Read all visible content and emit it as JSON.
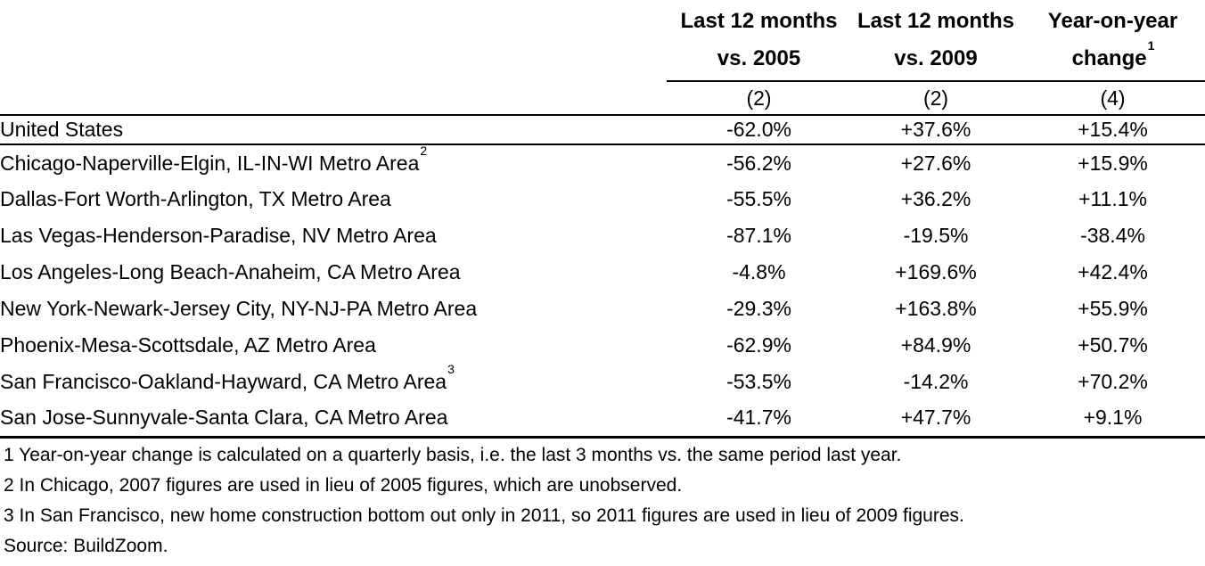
{
  "table": {
    "columns": [
      {
        "line1": "Last 12 months",
        "line2": "vs. 2005",
        "sup": "",
        "sub": "(2)"
      },
      {
        "line1": "Last 12 months",
        "line2": "vs. 2009",
        "sup": "",
        "sub": "(2)"
      },
      {
        "line1": "Year-on-year",
        "line2": "change",
        "sup": "1",
        "sub": "(4)"
      }
    ],
    "rows": [
      {
        "label": "United States",
        "sup": "",
        "vs2005": "-62.0%",
        "vs2009": "+37.6%",
        "yoy": "+15.4%"
      },
      {
        "label": "Chicago-Naperville-Elgin, IL-IN-WI Metro Area",
        "sup": "2",
        "vs2005": "-56.2%",
        "vs2009": "+27.6%",
        "yoy": "+15.9%"
      },
      {
        "label": "Dallas-Fort Worth-Arlington, TX Metro Area",
        "sup": "",
        "vs2005": "-55.5%",
        "vs2009": "+36.2%",
        "yoy": "+11.1%"
      },
      {
        "label": "Las Vegas-Henderson-Paradise, NV Metro Area",
        "sup": "",
        "vs2005": "-87.1%",
        "vs2009": "-19.5%",
        "yoy": "-38.4%"
      },
      {
        "label": "Los Angeles-Long Beach-Anaheim, CA Metro Area",
        "sup": "",
        "vs2005": "-4.8%",
        "vs2009": "+169.6%",
        "yoy": "+42.4%"
      },
      {
        "label": "New York-Newark-Jersey City, NY-NJ-PA Metro Area",
        "sup": "",
        "vs2005": "-29.3%",
        "vs2009": "+163.8%",
        "yoy": "+55.9%"
      },
      {
        "label": "Phoenix-Mesa-Scottsdale, AZ Metro Area",
        "sup": "",
        "vs2005": "-62.9%",
        "vs2009": "+84.9%",
        "yoy": "+50.7%"
      },
      {
        "label": "San Francisco-Oakland-Hayward, CA Metro Area",
        "sup": "3",
        "vs2005": "-53.5%",
        "vs2009": "-14.2%",
        "yoy": "+70.2%"
      },
      {
        "label": "San Jose-Sunnyvale-Santa Clara, CA Metro Area",
        "sup": "",
        "vs2005": "-41.7%",
        "vs2009": "+47.7%",
        "yoy": "+9.1%"
      }
    ]
  },
  "footnotes": [
    "1 Year-on-year change is calculated on a quarterly basis, i.e. the last 3 months vs. the same period last year.",
    "2 In Chicago, 2007 figures are used in lieu of 2005 figures, which are unobserved.",
    "3 In San Francisco, new home construction bottom out only in 2011, so 2011 figures are used in lieu of 2009 figures."
  ],
  "source": "Source: BuildZoom.",
  "colors": {
    "text": "#000000",
    "background": "#ffffff",
    "rule": "#000000"
  },
  "chart_data": {
    "type": "table",
    "title": "",
    "columns": [
      "",
      "Last 12 months vs. 2005 (2)",
      "Last 12 months vs. 2009 (2)",
      "Year-on-year change (1) (4)"
    ],
    "rows": [
      [
        "United States",
        "-62.0%",
        "+37.6%",
        "+15.4%"
      ],
      [
        "Chicago-Naperville-Elgin, IL-IN-WI Metro Area (2)",
        "-56.2%",
        "+27.6%",
        "+15.9%"
      ],
      [
        "Dallas-Fort Worth-Arlington, TX Metro Area",
        "-55.5%",
        "+36.2%",
        "+11.1%"
      ],
      [
        "Las Vegas-Henderson-Paradise, NV Metro Area",
        "-87.1%",
        "-19.5%",
        "-38.4%"
      ],
      [
        "Los Angeles-Long Beach-Anaheim, CA Metro Area",
        "-4.8%",
        "+169.6%",
        "+42.4%"
      ],
      [
        "New York-Newark-Jersey City, NY-NJ-PA Metro Area",
        "-29.3%",
        "+163.8%",
        "+55.9%"
      ],
      [
        "Phoenix-Mesa-Scottsdale, AZ Metro Area",
        "-62.9%",
        "+84.9%",
        "+50.7%"
      ],
      [
        "San Francisco-Oakland-Hayward, CA Metro Area (3)",
        "-53.5%",
        "-14.2%",
        "+70.2%"
      ],
      [
        "San Jose-Sunnyvale-Santa Clara, CA Metro Area",
        "-41.7%",
        "+47.7%",
        "+9.1%"
      ]
    ],
    "footnotes": [
      "1 Year-on-year change is calculated on a quarterly basis, i.e. the last 3 months vs. the same period last year.",
      "2 In Chicago, 2007 figures are used in lieu of 2005 figures, which are unobserved.",
      "3 In San Francisco, new home construction bottom out only in 2011, so 2011 figures are used in lieu of 2009 figures."
    ],
    "source": "Source: BuildZoom."
  }
}
